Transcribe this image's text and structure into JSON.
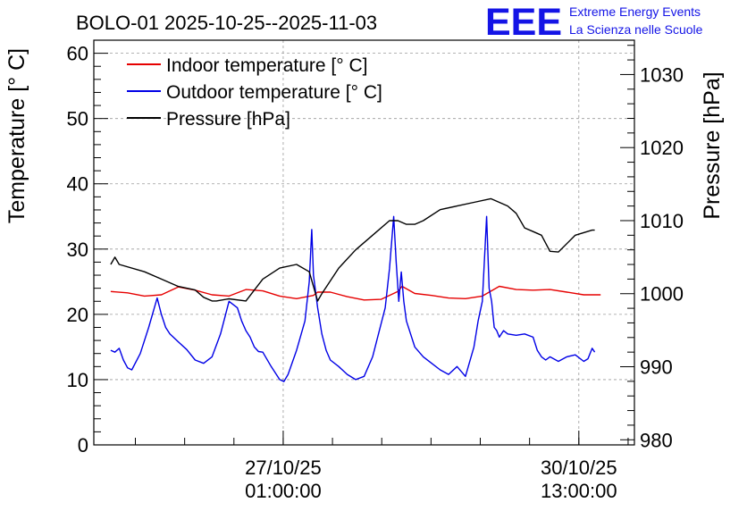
{
  "chart_data": {
    "type": "line",
    "title": "BOLO-01 2025-10-25--2025-11-03",
    "logo": {
      "text": "EEE",
      "line1": "Extreme Energy Events",
      "line2": "La Scienza nelle Scuole",
      "color": "#1414e6"
    },
    "ylabel": "Temperature [° C]",
    "y2label": "Pressure [hPa]",
    "ylim": [
      0,
      62
    ],
    "y2lim": [
      979.3,
      1034.7
    ],
    "y_ticks": [
      "0",
      "10",
      "20",
      "30",
      "40",
      "50",
      "60"
    ],
    "y2_ticks": [
      "980",
      "990",
      "1000",
      "1010",
      "1020",
      "1030"
    ],
    "x_unit": "days since 2025-10-25 00:00",
    "xlim": [
      -0.2,
      6.2
    ],
    "x_ticks": [
      {
        "x": 2.042,
        "line1": "27/10/25",
        "line2": "01:00:00"
      },
      {
        "x": 5.542,
        "line1": "30/10/25",
        "line2": "13:00:00"
      }
    ],
    "legend": {
      "position": "top-left",
      "entries": [
        {
          "label": "Indoor temperature [° C]",
          "color": "#e60000"
        },
        {
          "label": "Outdoor temperature [° C]",
          "color": "#0000e6"
        },
        {
          "label": "Pressure [hPa]",
          "color": "#000000"
        }
      ]
    },
    "grid": true,
    "series": [
      {
        "name": "Indoor temperature [° C]",
        "axis": "left",
        "color": "#e60000",
        "x": [
          0,
          0.2,
          0.4,
          0.6,
          0.8,
          1.0,
          1.2,
          1.4,
          1.6,
          1.8,
          2.0,
          2.2,
          2.4,
          2.45,
          2.6,
          2.8,
          3.0,
          3.2,
          3.4,
          3.45,
          3.6,
          3.8,
          4.0,
          4.2,
          4.4,
          4.6,
          4.8,
          5.0,
          5.2,
          5.4,
          5.6,
          5.8
        ],
        "values": [
          23.5,
          23.3,
          22.8,
          23.0,
          24.2,
          23.7,
          23.0,
          22.8,
          23.8,
          23.6,
          22.8,
          22.4,
          22.9,
          23.4,
          23.4,
          22.7,
          22.2,
          22.3,
          23.5,
          24.3,
          23.2,
          22.9,
          22.5,
          22.4,
          22.8,
          24.3,
          23.8,
          23.7,
          23.8,
          23.4,
          23.0,
          23.0
        ]
      },
      {
        "name": "Outdoor temperature [° C]",
        "axis": "left",
        "color": "#0000e6",
        "x": [
          0,
          0.05,
          0.1,
          0.15,
          0.2,
          0.25,
          0.35,
          0.45,
          0.55,
          0.6,
          0.65,
          0.7,
          0.8,
          0.9,
          1.0,
          1.1,
          1.2,
          1.3,
          1.4,
          1.5,
          1.55,
          1.6,
          1.65,
          1.7,
          1.75,
          1.8,
          1.9,
          2.0,
          2.05,
          2.1,
          2.2,
          2.3,
          2.35,
          2.38,
          2.4,
          2.42,
          2.45,
          2.5,
          2.55,
          2.6,
          2.7,
          2.8,
          2.9,
          3.0,
          3.1,
          3.2,
          3.25,
          3.3,
          3.35,
          3.38,
          3.41,
          3.44,
          3.47,
          3.5,
          3.6,
          3.7,
          3.8,
          3.9,
          4.0,
          4.1,
          4.2,
          4.3,
          4.35,
          4.4,
          4.45,
          4.48,
          4.51,
          4.54,
          4.57,
          4.6,
          4.65,
          4.7,
          4.8,
          4.9,
          5.0,
          5.05,
          5.1,
          5.15,
          5.2,
          5.3,
          5.4,
          5.5,
          5.6,
          5.65,
          5.7,
          5.73
        ],
        "values": [
          14.5,
          14.2,
          14.8,
          13.0,
          11.8,
          11.5,
          14.0,
          18.0,
          22.5,
          20.0,
          18.0,
          17.0,
          15.8,
          14.6,
          13.0,
          12.5,
          13.5,
          17.0,
          22.0,
          21.0,
          19.0,
          17.5,
          16.5,
          15.0,
          14.3,
          14.2,
          12.0,
          10.0,
          9.7,
          10.8,
          14.5,
          19.0,
          25.0,
          33.0,
          26.0,
          24.0,
          21.0,
          17.0,
          14.5,
          13.0,
          12.0,
          10.8,
          10.0,
          10.5,
          13.5,
          18.5,
          21.0,
          27.0,
          35.0,
          28.0,
          22.0,
          26.5,
          22.0,
          19.0,
          15.0,
          13.5,
          12.5,
          11.5,
          10.8,
          12.0,
          10.5,
          15.0,
          19.0,
          22.0,
          35.0,
          24.0,
          22.0,
          18.0,
          17.5,
          16.5,
          17.5,
          17.0,
          16.8,
          17.0,
          16.5,
          14.5,
          13.5,
          13.0,
          13.5,
          12.8,
          13.5,
          13.8,
          12.8,
          13.2,
          14.8,
          14.2
        ]
      },
      {
        "name": "Pressure [hPa]",
        "axis": "right",
        "color": "#000000",
        "x": [
          0,
          0.05,
          0.1,
          0.4,
          0.6,
          0.8,
          1.0,
          1.1,
          1.2,
          1.25,
          1.4,
          1.6,
          1.8,
          2.0,
          2.2,
          2.35,
          2.45,
          2.5,
          2.7,
          2.9,
          3.1,
          3.3,
          3.4,
          3.5,
          3.6,
          3.7,
          3.9,
          4.1,
          4.3,
          4.5,
          4.6,
          4.7,
          4.8,
          4.9,
          5.0,
          5.1,
          5.2,
          5.3,
          5.5,
          5.7,
          5.73
        ],
        "values": [
          1004.0,
          1005.0,
          1004.0,
          1003.0,
          1002.0,
          1001.0,
          1000.5,
          999.5,
          999.0,
          999.0,
          999.3,
          999.0,
          1002.0,
          1003.5,
          1004.0,
          1003.0,
          999.0,
          1000.0,
          1003.5,
          1006.0,
          1008.0,
          1010.0,
          1010.0,
          1009.5,
          1009.5,
          1010.0,
          1011.5,
          1012.0,
          1012.5,
          1013.0,
          1012.5,
          1012.0,
          1011.0,
          1009.0,
          1008.5,
          1008.0,
          1005.8,
          1005.7,
          1008.0,
          1008.7,
          1008.7
        ]
      }
    ]
  }
}
